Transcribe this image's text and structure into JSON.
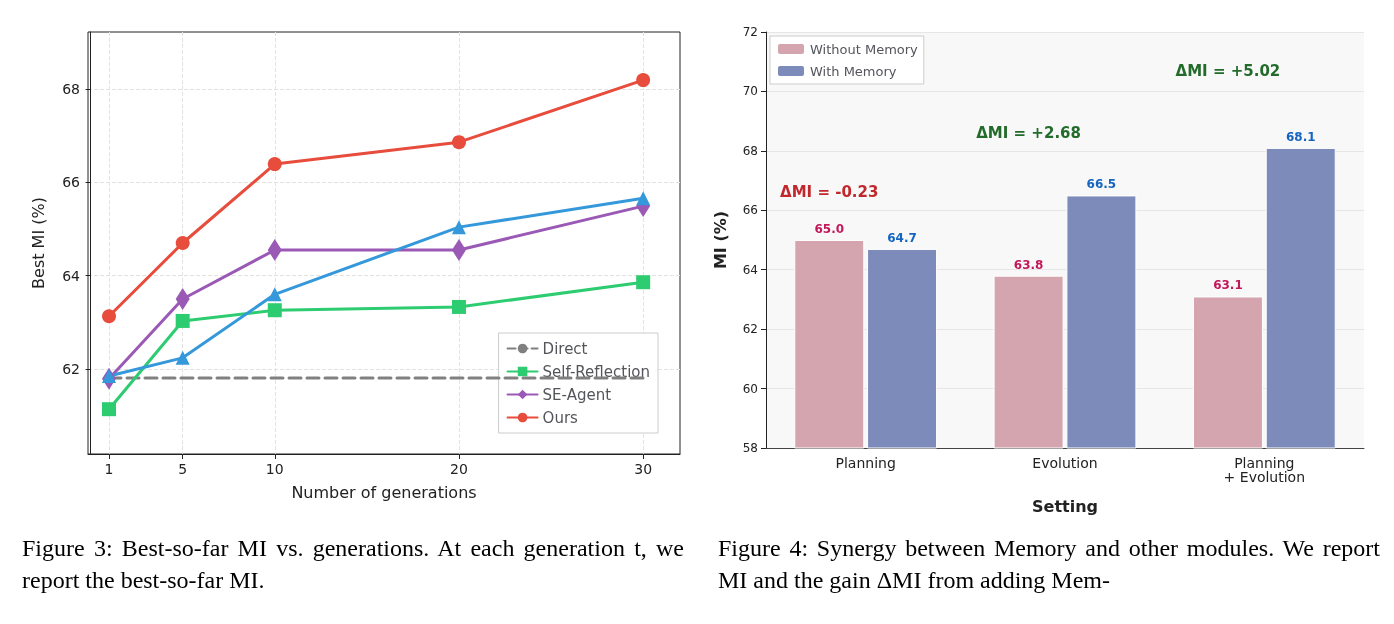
{
  "chart_data": [
    {
      "type": "line",
      "xlabel": "Number of generations",
      "ylabel": "Best MI (%)",
      "x": [
        1,
        5,
        10,
        20,
        30
      ],
      "xlim": [
        -0.14,
        32.0
      ],
      "xticks": [
        1,
        5,
        10,
        20,
        30
      ],
      "ylim": [
        60.18,
        69.22
      ],
      "yticks": [
        62,
        64,
        66,
        68
      ],
      "grid": true,
      "legend": "bottom right",
      "series": [
        {
          "name": "Direct",
          "color": "#808080",
          "values": [
            61.81,
            61.81,
            61.81,
            61.81,
            61.81
          ],
          "marker": "none",
          "line_style": "dashed"
        },
        {
          "name": "Self-Reflection",
          "color": "#2ecc71",
          "values": [
            61.14,
            63.03,
            63.26,
            63.33,
            63.86
          ],
          "marker": "square",
          "line_style": "solid"
        },
        {
          "name": "SE-Agent",
          "color": "#9b59b6",
          "values": [
            61.79,
            63.5,
            64.55,
            64.55,
            65.49
          ],
          "marker": "diamond",
          "line_style": "solid"
        },
        {
          "color": "#3498db",
          "values": [
            61.85,
            62.24,
            63.6,
            65.04,
            65.66
          ],
          "marker": "triangle",
          "line_style": "solid"
        },
        {
          "name": "Ours",
          "color": "#e74c3c",
          "values": [
            63.13,
            64.7,
            66.39,
            66.86,
            68.19
          ],
          "marker": "circle",
          "line_style": "solid"
        }
      ],
      "title": "Figure 3: Best-so-far MI vs. generations. At each generation t, we report the best-so-far MI."
    },
    {
      "type": "bar",
      "xlabel": "Setting",
      "ylabel": "MI (%)",
      "categories": [
        "Planning",
        "Evolution",
        "Planning\n+ Evolution"
      ],
      "ylim": [
        58,
        72
      ],
      "yticks": [
        58,
        60,
        62,
        64,
        66,
        68,
        70,
        72
      ],
      "grid": "y",
      "legend": "top left",
      "series": [
        {
          "name": "Without Memory",
          "color": "#d4a5ae",
          "values": [
            65.0,
            63.8,
            63.1
          ],
          "value_labels": [
            "65.0",
            "63.8",
            "63.1"
          ]
        },
        {
          "name": "With Memory",
          "color": "#7d8bbb",
          "values": [
            64.7,
            66.5,
            68.1
          ],
          "value_labels": [
            "64.7",
            "66.5",
            "68.1"
          ]
        }
      ],
      "annotations": [
        "ΔMI = -0.23",
        "ΔMI = +2.68",
        "ΔMI = +5.02"
      ],
      "title": "Figure 4: Synergy between Memory and other modules. We report MI and the gain ΔMI from adding Mem-"
    }
  ]
}
